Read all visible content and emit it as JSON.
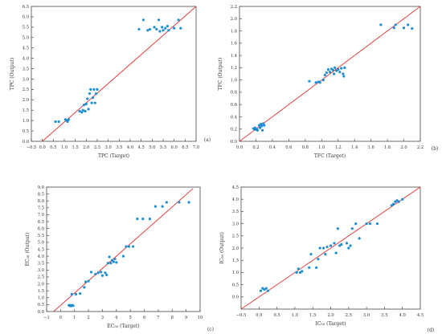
{
  "chart_data": [
    {
      "type": "scatter",
      "panel_label": "(a)",
      "xlabel": "TPC (Target)",
      "ylabel": "TPC (Output)",
      "xlim": [
        -0.5,
        7.0
      ],
      "ylim": [
        0.0,
        6.5
      ],
      "xticks": [
        "−0.5",
        "0.0",
        "0.5",
        "1.0",
        "1.5",
        "2.0",
        "2.5",
        "3.0",
        "3.5",
        "4.0",
        "4.5",
        "5.0",
        "5.5",
        "6.0",
        "6.5",
        "7.0"
      ],
      "xtick_values": [
        -0.5,
        0.0,
        0.5,
        1.0,
        1.5,
        2.0,
        2.5,
        3.0,
        3.5,
        4.0,
        4.5,
        5.0,
        5.5,
        6.0,
        6.5,
        7.0
      ],
      "yticks": [
        "0.0",
        "0.5",
        "1.0",
        "1.5",
        "2.0",
        "2.5",
        "3.0",
        "3.5",
        "4.0",
        "4.5",
        "5.0",
        "5.5",
        "6.0",
        "6.5"
      ],
      "ytick_values": [
        0.0,
        0.5,
        1.0,
        1.5,
        2.0,
        2.5,
        3.0,
        3.5,
        4.0,
        4.5,
        5.0,
        5.5,
        6.0,
        6.5
      ],
      "grid": false,
      "fit_line": [
        [
          0.0,
          0.0
        ],
        [
          7.0,
          6.5
        ]
      ],
      "points": [
        [
          0.6,
          0.95
        ],
        [
          0.75,
          0.95
        ],
        [
          1.05,
          1.05
        ],
        [
          1.1,
          1.0
        ],
        [
          1.15,
          0.95
        ],
        [
          1.2,
          1.05
        ],
        [
          1.7,
          1.45
        ],
        [
          1.8,
          1.4
        ],
        [
          1.85,
          1.5
        ],
        [
          1.9,
          1.75
        ],
        [
          1.95,
          1.45
        ],
        [
          2.0,
          1.8
        ],
        [
          2.05,
          2.05
        ],
        [
          2.1,
          1.55
        ],
        [
          2.15,
          2.3
        ],
        [
          2.2,
          2.5
        ],
        [
          2.25,
          1.85
        ],
        [
          2.3,
          2.1
        ],
        [
          2.35,
          2.5
        ],
        [
          2.4,
          1.85
        ],
        [
          2.45,
          2.3
        ],
        [
          2.5,
          2.5
        ],
        [
          4.4,
          5.4
        ],
        [
          4.6,
          5.85
        ],
        [
          4.8,
          5.35
        ],
        [
          4.9,
          5.4
        ],
        [
          5.1,
          5.5
        ],
        [
          5.2,
          5.4
        ],
        [
          5.3,
          5.85
        ],
        [
          5.35,
          5.3
        ],
        [
          5.45,
          5.5
        ],
        [
          5.5,
          5.35
        ],
        [
          5.6,
          5.45
        ],
        [
          5.7,
          5.55
        ],
        [
          5.75,
          5.35
        ],
        [
          6.0,
          5.45
        ],
        [
          6.2,
          5.85
        ],
        [
          6.3,
          5.45
        ]
      ]
    },
    {
      "type": "scatter",
      "panel_label": "(b)",
      "xlabel": "TFC (Target)",
      "ylabel": "TFC (Output)",
      "xlim": [
        0.0,
        2.2
      ],
      "ylim": [
        0.0,
        2.2
      ],
      "xticks": [
        "0.0",
        "0.2",
        "0.4",
        "0.6",
        "0.8",
        "1.0",
        "1.2",
        "1.4",
        "1.6",
        "1.8",
        "2.0",
        "2.2"
      ],
      "xtick_values": [
        0.0,
        0.2,
        0.4,
        0.6,
        0.8,
        1.0,
        1.2,
        1.4,
        1.6,
        1.8,
        2.0,
        2.2
      ],
      "yticks": [
        "0.0",
        "0.2",
        "0.4",
        "0.6",
        "0.8",
        "1.0",
        "1.2",
        "1.4",
        "1.6",
        "1.8",
        "2.0",
        "2.2"
      ],
      "ytick_values": [
        0.0,
        0.2,
        0.4,
        0.6,
        0.8,
        1.0,
        1.2,
        1.4,
        1.6,
        1.8,
        2.0,
        2.2
      ],
      "grid": false,
      "fit_line": [
        [
          0.0,
          0.0
        ],
        [
          2.2,
          2.2
        ]
      ],
      "points": [
        [
          0.17,
          0.21
        ],
        [
          0.18,
          0.2
        ],
        [
          0.19,
          0.22
        ],
        [
          0.2,
          0.19
        ],
        [
          0.21,
          0.2
        ],
        [
          0.22,
          0.18
        ],
        [
          0.24,
          0.26
        ],
        [
          0.25,
          0.22
        ],
        [
          0.26,
          0.28
        ],
        [
          0.27,
          0.25
        ],
        [
          0.28,
          0.18
        ],
        [
          0.29,
          0.29
        ],
        [
          0.3,
          0.26
        ],
        [
          0.85,
          0.98
        ],
        [
          0.93,
          0.96
        ],
        [
          0.96,
          0.97
        ],
        [
          0.98,
          0.96
        ],
        [
          1.02,
          1.0
        ],
        [
          1.04,
          1.08
        ],
        [
          1.06,
          1.12
        ],
        [
          1.08,
          1.17
        ],
        [
          1.1,
          1.13
        ],
        [
          1.12,
          1.18
        ],
        [
          1.14,
          1.16
        ],
        [
          1.15,
          1.1
        ],
        [
          1.16,
          1.2
        ],
        [
          1.18,
          1.15
        ],
        [
          1.2,
          1.17
        ],
        [
          1.22,
          1.13
        ],
        [
          1.24,
          1.19
        ],
        [
          1.26,
          1.1
        ],
        [
          1.27,
          1.06
        ],
        [
          1.28,
          1.2
        ],
        [
          1.72,
          1.9
        ],
        [
          1.88,
          1.85
        ],
        [
          1.9,
          1.9
        ],
        [
          2.0,
          1.85
        ],
        [
          2.05,
          1.9
        ],
        [
          2.1,
          1.84
        ]
      ]
    },
    {
      "type": "scatter",
      "panel_label": "(c)",
      "xlabel": "EC₅₀ (Target)",
      "ylabel": "EC₅₀ (Output)",
      "xlim": [
        -1,
        10
      ],
      "ylim": [
        0.0,
        9.0
      ],
      "xticks": [
        "−1",
        "0",
        "1",
        "2",
        "3",
        "4",
        "5",
        "6",
        "7",
        "8",
        "9",
        "10"
      ],
      "xtick_values": [
        -1,
        0,
        1,
        2,
        3,
        4,
        5,
        6,
        7,
        8,
        9,
        10
      ],
      "yticks": [
        "0.0",
        "0.5",
        "1.0",
        "1.5",
        "2.0",
        "2.5",
        "3.0",
        "3.5",
        "4.0",
        "4.5",
        "5.0",
        "5.5",
        "6.0",
        "6.5",
        "7.0",
        "7.5",
        "8.0",
        "8.5",
        "9.0"
      ],
      "ytick_values": [
        0.0,
        0.5,
        1.0,
        1.5,
        2.0,
        2.5,
        3.0,
        3.5,
        4.0,
        4.5,
        5.0,
        5.5,
        6.0,
        6.5,
        7.0,
        7.5,
        8.0,
        8.5,
        9.0
      ],
      "grid": false,
      "fit_line": [
        [
          -0.5,
          0.0
        ],
        [
          9.5,
          8.9
        ]
      ],
      "points": [
        [
          0.6,
          0.45
        ],
        [
          0.65,
          0.42
        ],
        [
          0.7,
          0.45
        ],
        [
          0.75,
          0.4
        ],
        [
          0.8,
          0.42
        ],
        [
          0.85,
          0.45
        ],
        [
          0.9,
          0.42
        ],
        [
          0.8,
          1.25
        ],
        [
          1.1,
          1.25
        ],
        [
          1.4,
          1.3
        ],
        [
          1.7,
          1.75
        ],
        [
          1.8,
          2.15
        ],
        [
          2.0,
          2.2
        ],
        [
          2.2,
          2.85
        ],
        [
          2.5,
          2.7
        ],
        [
          2.7,
          2.8
        ],
        [
          2.9,
          2.85
        ],
        [
          3.0,
          2.6
        ],
        [
          3.2,
          2.8
        ],
        [
          3.4,
          3.5
        ],
        [
          3.5,
          3.95
        ],
        [
          3.6,
          3.5
        ],
        [
          3.7,
          3.7
        ],
        [
          3.8,
          3.6
        ],
        [
          3.9,
          3.8
        ],
        [
          4.0,
          3.55
        ],
        [
          3.3,
          2.65
        ],
        [
          4.5,
          4.0
        ],
        [
          4.7,
          4.7
        ],
        [
          4.9,
          4.7
        ],
        [
          5.2,
          4.7
        ],
        [
          5.5,
          6.7
        ],
        [
          5.9,
          6.7
        ],
        [
          6.4,
          6.7
        ],
        [
          6.8,
          7.6
        ],
        [
          7.3,
          7.6
        ],
        [
          7.6,
          7.9
        ],
        [
          8.5,
          7.9
        ],
        [
          9.2,
          7.9
        ]
      ]
    },
    {
      "type": "scatter",
      "panel_label": "(d)",
      "xlabel": "IC₅₀ (Target)",
      "ylabel": "IC₅₀ (Output)",
      "xlim": [
        -0.5,
        4.5
      ],
      "ylim": [
        -0.5,
        4.5
      ],
      "xticks": [
        "−0.5",
        "0.0",
        "0.5",
        "1.0",
        "1.5",
        "2.0",
        "2.5",
        "3.0",
        "3.5",
        "4.0",
        "4.5"
      ],
      "xtick_values": [
        -0.5,
        0.0,
        0.5,
        1.0,
        1.5,
        2.0,
        2.5,
        3.0,
        3.5,
        4.0,
        4.5
      ],
      "yticks": [
        "0.0",
        "0.5",
        "1.0",
        "1.5",
        "2.0",
        "2.5",
        "3.0",
        "3.5",
        "4.0",
        "4.5"
      ],
      "ytick_values": [
        0.0,
        0.5,
        1.0,
        1.5,
        2.0,
        2.5,
        3.0,
        3.5,
        4.0,
        4.5
      ],
      "grid": false,
      "fit_line": [
        [
          -0.5,
          -0.5
        ],
        [
          4.5,
          4.5
        ]
      ],
      "points": [
        [
          0.05,
          0.25
        ],
        [
          0.1,
          0.35
        ],
        [
          0.15,
          0.3
        ],
        [
          0.2,
          0.35
        ],
        [
          0.25,
          0.25
        ],
        [
          1.05,
          1.0
        ],
        [
          1.1,
          1.15
        ],
        [
          1.15,
          1.0
        ],
        [
          1.2,
          1.05
        ],
        [
          1.4,
          1.2
        ],
        [
          1.45,
          1.75
        ],
        [
          1.6,
          1.2
        ],
        [
          1.65,
          1.55
        ],
        [
          1.7,
          2.0
        ],
        [
          1.8,
          2.0
        ],
        [
          1.85,
          1.75
        ],
        [
          1.9,
          2.05
        ],
        [
          2.0,
          2.1
        ],
        [
          2.1,
          2.2
        ],
        [
          2.15,
          1.8
        ],
        [
          2.2,
          2.8
        ],
        [
          2.25,
          2.1
        ],
        [
          2.3,
          2.15
        ],
        [
          2.45,
          2.2
        ],
        [
          2.5,
          2.0
        ],
        [
          2.55,
          2.1
        ],
        [
          2.6,
          2.8
        ],
        [
          2.7,
          3.0
        ],
        [
          2.8,
          2.4
        ],
        [
          3.0,
          3.0
        ],
        [
          3.1,
          3.0
        ],
        [
          3.3,
          3.0
        ],
        [
          3.7,
          3.75
        ],
        [
          3.75,
          3.8
        ],
        [
          3.8,
          3.9
        ],
        [
          3.85,
          3.95
        ],
        [
          3.9,
          3.9
        ],
        [
          4.0,
          4.0
        ]
      ]
    }
  ],
  "colors": {
    "point": "#1f8ed1",
    "fit_line": "#e03030",
    "axis": "#4a4a4a",
    "text": "#333333"
  }
}
